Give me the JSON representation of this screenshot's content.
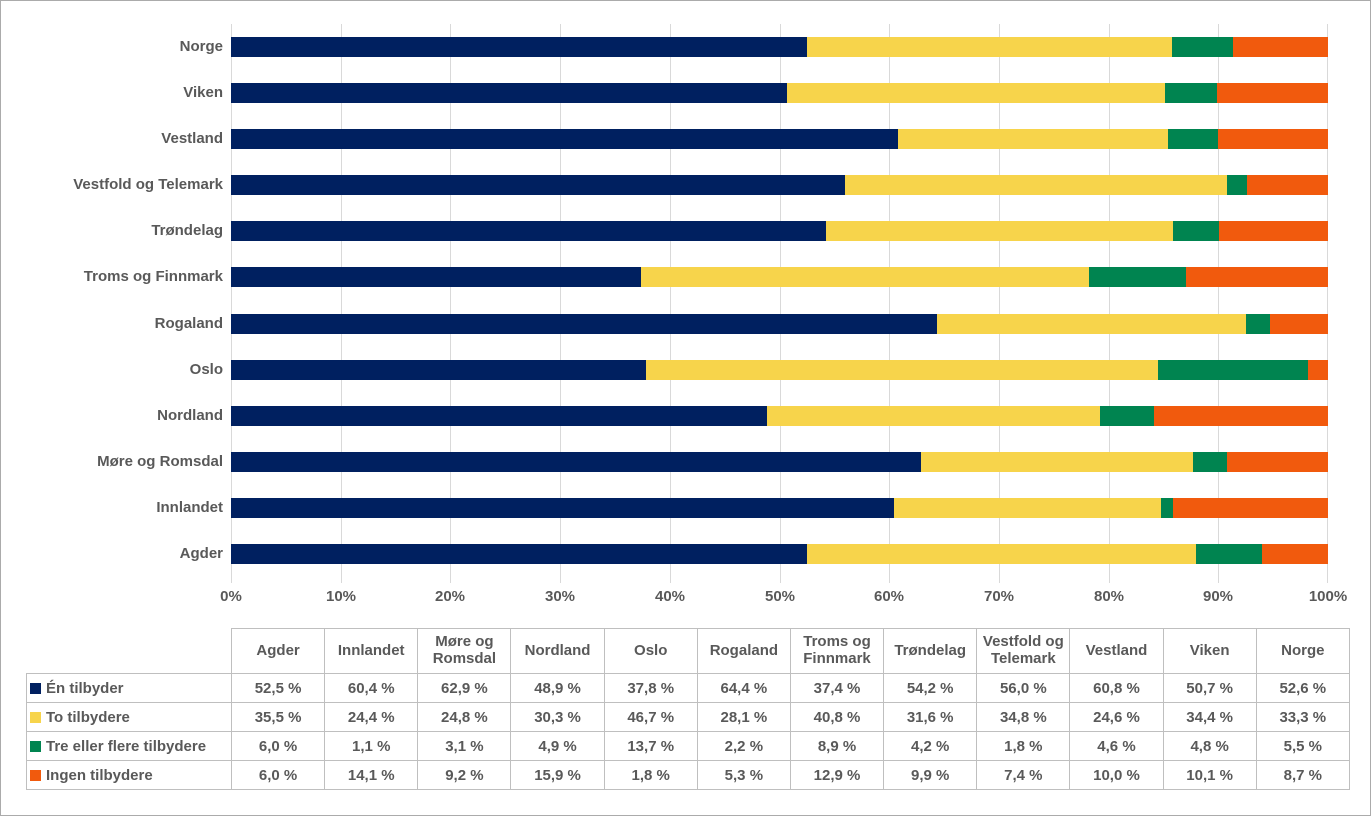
{
  "chart_data": {
    "type": "bar",
    "stacked": true,
    "percent_stacked": true,
    "orientation": "horizontal",
    "grid": true,
    "xlim": [
      0,
      100
    ],
    "x_ticks": [
      "0%",
      "10%",
      "20%",
      "30%",
      "40%",
      "50%",
      "60%",
      "70%",
      "80%",
      "90%",
      "100%"
    ],
    "categories": [
      "Agder",
      "Innlandet",
      "Møre og Romsdal",
      "Nordland",
      "Oslo",
      "Rogaland",
      "Troms og Finnmark",
      "Trøndelag",
      "Vestfold og Telemark",
      "Vestland",
      "Viken",
      "Norge"
    ],
    "bar_order_top_to_bottom": [
      "Norge",
      "Viken",
      "Vestland",
      "Vestfold og Telemark",
      "Trøndelag",
      "Troms og Finnmark",
      "Rogaland",
      "Oslo",
      "Nordland",
      "Møre og Romsdal",
      "Innlandet",
      "Agder"
    ],
    "series": [
      {
        "name": "Én tilbyder",
        "color": "#002060",
        "values": [
          52.5,
          60.4,
          62.9,
          48.9,
          37.8,
          64.4,
          37.4,
          54.2,
          56.0,
          60.8,
          50.7,
          52.6
        ]
      },
      {
        "name": "To tilbydere",
        "color": "#F7D44B",
        "values": [
          35.5,
          24.4,
          24.8,
          30.3,
          46.7,
          28.1,
          40.8,
          31.6,
          34.8,
          24.6,
          34.4,
          33.3
        ]
      },
      {
        "name": "Tre eller flere tilbydere",
        "color": "#008450",
        "values": [
          6.0,
          1.1,
          3.1,
          4.9,
          13.7,
          2.2,
          8.9,
          4.2,
          1.8,
          4.6,
          4.8,
          5.5
        ]
      },
      {
        "name": "Ingen tilbydere",
        "color": "#F15A0D",
        "values": [
          6.0,
          14.1,
          9.2,
          15.9,
          1.8,
          5.3,
          12.9,
          9.9,
          7.4,
          10.0,
          10.1,
          8.7
        ]
      }
    ],
    "legend_position": "table-left-column"
  },
  "table": {
    "corner_label": "",
    "columns": [
      "Agder",
      "Innlandet",
      "Møre og Romsdal",
      "Nordland",
      "Oslo",
      "Rogaland",
      "Troms og Finnmark",
      "Trøndelag",
      "Vestfold og Telemark",
      "Vestland",
      "Viken",
      "Norge"
    ],
    "rows": [
      {
        "label": "Én tilbyder",
        "swatch_color": "#002060",
        "values": [
          "52,5 %",
          "60,4 %",
          "62,9 %",
          "48,9 %",
          "37,8 %",
          "64,4 %",
          "37,4 %",
          "54,2 %",
          "56,0 %",
          "60,8 %",
          "50,7 %",
          "52,6 %"
        ]
      },
      {
        "label": "To tilbydere",
        "swatch_color": "#F7D44B",
        "values": [
          "35,5 %",
          "24,4 %",
          "24,8 %",
          "30,3 %",
          "46,7 %",
          "28,1 %",
          "40,8 %",
          "31,6 %",
          "34,8 %",
          "24,6 %",
          "34,4 %",
          "33,3 %"
        ]
      },
      {
        "label": "Tre eller flere tilbydere",
        "swatch_color": "#008450",
        "values": [
          "6,0 %",
          "1,1 %",
          "3,1 %",
          "4,9 %",
          "13,7 %",
          "2,2 %",
          "8,9 %",
          "4,2 %",
          "1,8 %",
          "4,6 %",
          "4,8 %",
          "5,5 %"
        ]
      },
      {
        "label": "Ingen tilbydere",
        "swatch_color": "#F15A0D",
        "values": [
          "6,0 %",
          "14,1 %",
          "9,2 %",
          "15,9 %",
          "1,8 %",
          "5,3 %",
          "12,9 %",
          "9,9 %",
          "7,4 %",
          "10,0 %",
          "10,1 %",
          "8,7 %"
        ]
      }
    ]
  },
  "colors": {
    "grid": "#D9D9D9",
    "axis_text": "#595959",
    "table_border": "#BFBFBF",
    "table_text": "#595959",
    "page_border": "#ABABAB",
    "background": "#FFFFFF"
  }
}
